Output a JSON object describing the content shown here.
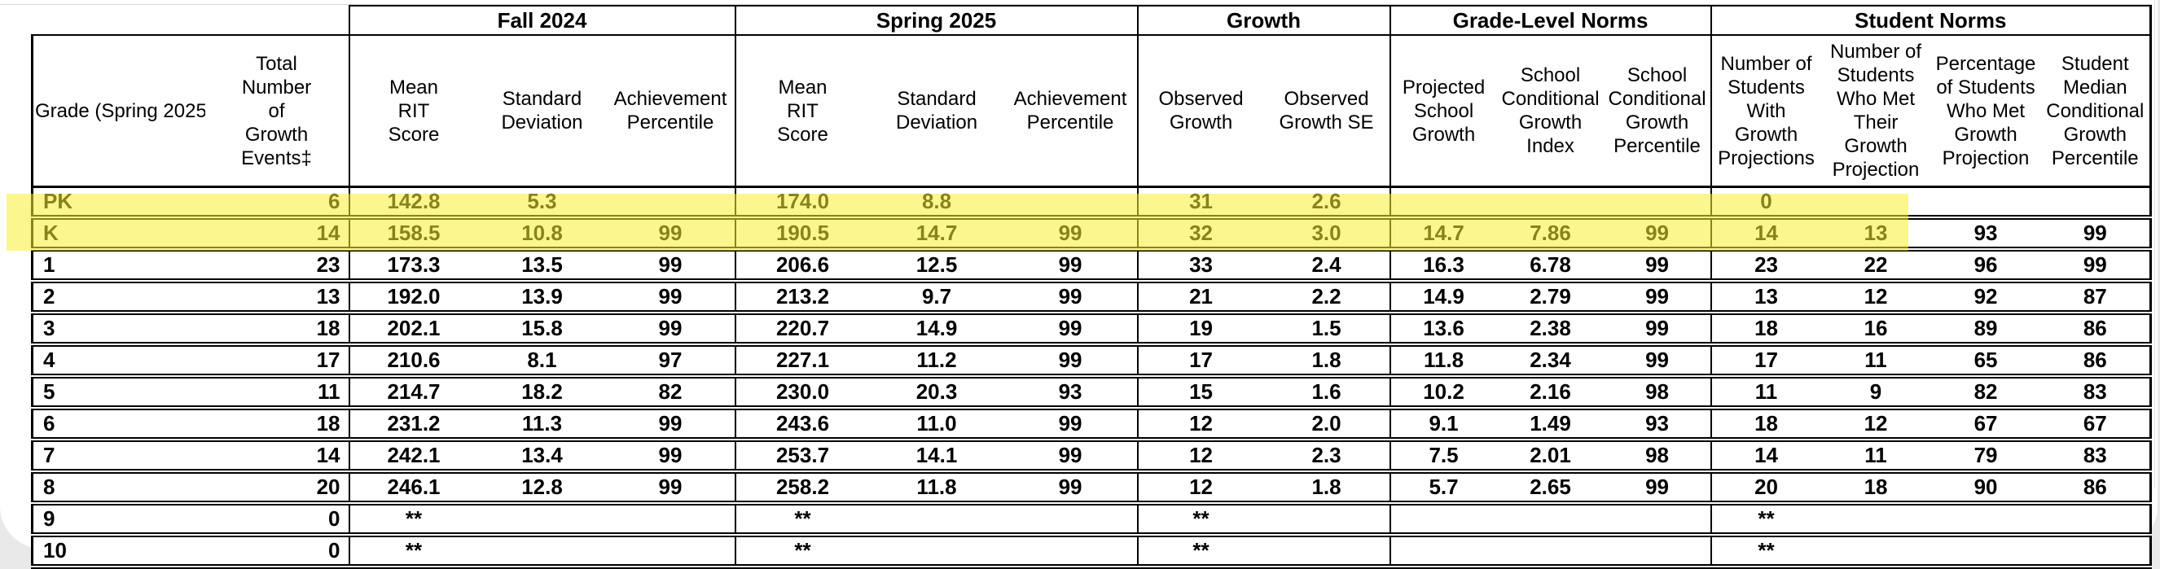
{
  "highlight": {
    "rows": [
      "PK",
      "K"
    ],
    "color": "#f7ee32",
    "rgba": "rgba(247,238,50,0.55)"
  },
  "table": {
    "corner_header": {
      "grade": "Grade (Spring 2025)",
      "total": "Total Number of Growth Events‡"
    },
    "groups": [
      {
        "label": "Fall 2024",
        "columns": [
          "Mean RIT Score",
          "Standard Deviation",
          "Achievement Percentile"
        ]
      },
      {
        "label": "Spring 2025",
        "columns": [
          "Mean RIT Score",
          "Standard Deviation",
          "Achievement Percentile"
        ]
      },
      {
        "label": "Growth",
        "columns": [
          "Observed Growth",
          "Observed Growth SE"
        ]
      },
      {
        "label": "Grade-Level Norms",
        "columns": [
          "Projected School Growth",
          "School Conditional Growth Index",
          "School Conditional Growth Percentile"
        ]
      },
      {
        "label": "Student Norms",
        "columns": [
          "Number of Students With Growth Projections",
          "Number of Students Who Met Their Growth Projection",
          "Percentage of Students Who Met Growth Projection",
          "Student Median Conditional Growth Percentile"
        ]
      }
    ],
    "rows": [
      {
        "cells": [
          "PK",
          "6",
          "142.8",
          "5.3",
          "",
          "174.0",
          "8.8",
          "",
          "31",
          "2.6",
          "",
          "",
          "",
          "0",
          "",
          "",
          ""
        ]
      },
      {
        "cells": [
          "K",
          "14",
          "158.5",
          "10.8",
          "99",
          "190.5",
          "14.7",
          "99",
          "32",
          "3.0",
          "14.7",
          "7.86",
          "99",
          "14",
          "13",
          "93",
          "99"
        ]
      },
      {
        "cells": [
          "1",
          "23",
          "173.3",
          "13.5",
          "99",
          "206.6",
          "12.5",
          "99",
          "33",
          "2.4",
          "16.3",
          "6.78",
          "99",
          "23",
          "22",
          "96",
          "99"
        ]
      },
      {
        "cells": [
          "2",
          "13",
          "192.0",
          "13.9",
          "99",
          "213.2",
          "9.7",
          "99",
          "21",
          "2.2",
          "14.9",
          "2.79",
          "99",
          "13",
          "12",
          "92",
          "87"
        ]
      },
      {
        "cells": [
          "3",
          "18",
          "202.1",
          "15.8",
          "99",
          "220.7",
          "14.9",
          "99",
          "19",
          "1.5",
          "13.6",
          "2.38",
          "99",
          "18",
          "16",
          "89",
          "86"
        ]
      },
      {
        "cells": [
          "4",
          "17",
          "210.6",
          "8.1",
          "97",
          "227.1",
          "11.2",
          "99",
          "17",
          "1.8",
          "11.8",
          "2.34",
          "99",
          "17",
          "11",
          "65",
          "86"
        ]
      },
      {
        "cells": [
          "5",
          "11",
          "214.7",
          "18.2",
          "82",
          "230.0",
          "20.3",
          "93",
          "15",
          "1.6",
          "10.2",
          "2.16",
          "98",
          "11",
          "9",
          "82",
          "83"
        ]
      },
      {
        "cells": [
          "6",
          "18",
          "231.2",
          "11.3",
          "99",
          "243.6",
          "11.0",
          "99",
          "12",
          "2.0",
          "9.1",
          "1.49",
          "93",
          "18",
          "12",
          "67",
          "67"
        ]
      },
      {
        "cells": [
          "7",
          "14",
          "242.1",
          "13.4",
          "99",
          "253.7",
          "14.1",
          "99",
          "12",
          "2.3",
          "7.5",
          "2.01",
          "98",
          "14",
          "11",
          "79",
          "83"
        ]
      },
      {
        "cells": [
          "8",
          "20",
          "246.1",
          "12.8",
          "99",
          "258.2",
          "11.8",
          "99",
          "12",
          "1.8",
          "5.7",
          "2.65",
          "99",
          "20",
          "18",
          "90",
          "86"
        ]
      },
      {
        "cells": [
          "9",
          "0",
          "**",
          "",
          "",
          "**",
          "",
          "",
          "**",
          "",
          "",
          "",
          "",
          "**",
          "",
          "",
          ""
        ]
      },
      {
        "cells": [
          "10",
          "0",
          "**",
          "",
          "",
          "**",
          "",
          "",
          "**",
          "",
          "",
          "",
          "",
          "**",
          "",
          "",
          ""
        ]
      }
    ]
  }
}
